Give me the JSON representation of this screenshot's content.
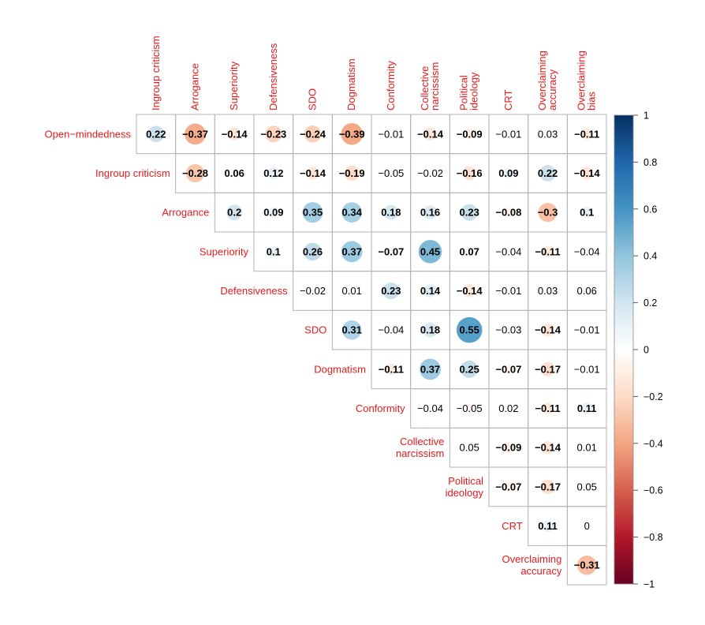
{
  "chart_data": {
    "type": "heatmap",
    "subtype": "correlation-matrix-upper-triangle",
    "label_color": "#e41a1c",
    "columns": [
      "Ingroup criticism",
      "Arrogance",
      "Superiority",
      "Defensiveness",
      "SDO",
      "Dogmatism",
      "Conformity",
      "Collective narcissism",
      "Political ideology",
      "CRT",
      "Overclaiming accuracy",
      "Overclaiming bias"
    ],
    "column_label_lines": [
      [
        "Ingroup criticism"
      ],
      [
        "Arrogance"
      ],
      [
        "Superiority"
      ],
      [
        "Defensiveness"
      ],
      [
        "SDO"
      ],
      [
        "Dogmatism"
      ],
      [
        "Conformity"
      ],
      [
        "Collective",
        "narcissism"
      ],
      [
        "Political",
        "ideology"
      ],
      [
        "CRT"
      ],
      [
        "Overclaiming",
        "accuracy"
      ],
      [
        "Overclaiming",
        "bias"
      ]
    ],
    "rows": [
      "Open−mindedness",
      "Ingroup criticism",
      "Arrogance",
      "Superiority",
      "Defensiveness",
      "SDO",
      "Dogmatism",
      "Conformity",
      "Collective narcissism",
      "Political ideology",
      "CRT",
      "Overclaiming accuracy"
    ],
    "row_label_lines": [
      [
        "Open−mindedness"
      ],
      [
        "Ingroup criticism"
      ],
      [
        "Arrogance"
      ],
      [
        "Superiority"
      ],
      [
        "Defensiveness"
      ],
      [
        "SDO"
      ],
      [
        "Dogmatism"
      ],
      [
        "Conformity"
      ],
      [
        "Collective",
        "narcissism"
      ],
      [
        "Political",
        "ideology"
      ],
      [
        "CRT"
      ],
      [
        "Overclaiming",
        "accuracy"
      ]
    ],
    "cells": [
      [
        {
          "v": 0.22,
          "t": "0.22",
          "c": 1
        },
        {
          "v": -0.37,
          "t": "−0.37",
          "c": 1
        },
        {
          "v": -0.14,
          "t": "−0.14",
          "c": 1
        },
        {
          "v": -0.23,
          "t": "−0.23",
          "c": 1
        },
        {
          "v": -0.24,
          "t": "−0.24",
          "c": 1
        },
        {
          "v": -0.39,
          "t": "−0.39",
          "c": 1
        },
        {
          "v": -0.01,
          "t": "−0.01",
          "c": 0
        },
        {
          "v": -0.14,
          "t": "−0.14",
          "c": 1
        },
        {
          "v": -0.09,
          "t": "−0.09",
          "c": 1
        },
        {
          "v": -0.01,
          "t": "−0.01",
          "c": 0
        },
        {
          "v": 0.03,
          "t": "0.03",
          "c": 0
        },
        {
          "v": -0.11,
          "t": "−0.11",
          "c": 1
        }
      ],
      [
        {
          "v": -0.28,
          "t": "−0.28",
          "c": 1
        },
        {
          "v": 0.06,
          "t": "0.06",
          "c": 1
        },
        {
          "v": 0.12,
          "t": "0.12",
          "c": 1
        },
        {
          "v": -0.14,
          "t": "−0.14",
          "c": 1
        },
        {
          "v": -0.19,
          "t": "−0.19",
          "c": 1
        },
        {
          "v": -0.05,
          "t": "−0.05",
          "c": 0
        },
        {
          "v": -0.02,
          "t": "−0.02",
          "c": 0
        },
        {
          "v": -0.16,
          "t": "−0.16",
          "c": 1
        },
        {
          "v": 0.09,
          "t": "0.09",
          "c": 1
        },
        {
          "v": 0.22,
          "t": "0.22",
          "c": 1
        },
        {
          "v": -0.14,
          "t": "−0.14",
          "c": 1
        }
      ],
      [
        {
          "v": 0.2,
          "t": "0.2",
          "c": 1
        },
        {
          "v": 0.09,
          "t": "0.09",
          "c": 1
        },
        {
          "v": 0.35,
          "t": "0.35",
          "c": 1
        },
        {
          "v": 0.34,
          "t": "0.34",
          "c": 1
        },
        {
          "v": 0.18,
          "t": "0.18",
          "c": 1
        },
        {
          "v": 0.16,
          "t": "0.16",
          "c": 1
        },
        {
          "v": 0.23,
          "t": "0.23",
          "c": 1
        },
        {
          "v": -0.08,
          "t": "−0.08",
          "c": 1
        },
        {
          "v": -0.3,
          "t": "−0.3",
          "c": 1
        },
        {
          "v": 0.1,
          "t": "0.1",
          "c": 1
        }
      ],
      [
        {
          "v": 0.1,
          "t": "0.1",
          "c": 1
        },
        {
          "v": 0.26,
          "t": "0.26",
          "c": 1
        },
        {
          "v": 0.37,
          "t": "0.37",
          "c": 1
        },
        {
          "v": -0.07,
          "t": "−0.07",
          "c": 1
        },
        {
          "v": 0.45,
          "t": "0.45",
          "c": 1
        },
        {
          "v": 0.07,
          "t": "0.07",
          "c": 1
        },
        {
          "v": -0.04,
          "t": "−0.04",
          "c": 0
        },
        {
          "v": -0.11,
          "t": "−0.11",
          "c": 1
        },
        {
          "v": -0.04,
          "t": "−0.04",
          "c": 0
        }
      ],
      [
        {
          "v": -0.02,
          "t": "−0.02",
          "c": 0
        },
        {
          "v": 0.01,
          "t": "0.01",
          "c": 0
        },
        {
          "v": 0.23,
          "t": "0.23",
          "c": 1
        },
        {
          "v": 0.14,
          "t": "0.14",
          "c": 1
        },
        {
          "v": -0.14,
          "t": "−0.14",
          "c": 1
        },
        {
          "v": -0.01,
          "t": "−0.01",
          "c": 0
        },
        {
          "v": 0.03,
          "t": "0.03",
          "c": 0
        },
        {
          "v": 0.06,
          "t": "0.06",
          "c": 0
        }
      ],
      [
        {
          "v": 0.31,
          "t": "0.31",
          "c": 1
        },
        {
          "v": -0.04,
          "t": "−0.04",
          "c": 0
        },
        {
          "v": 0.18,
          "t": "0.18",
          "c": 1
        },
        {
          "v": 0.55,
          "t": "0.55",
          "c": 1
        },
        {
          "v": -0.03,
          "t": "−0.03",
          "c": 0
        },
        {
          "v": -0.14,
          "t": "−0.14",
          "c": 1
        },
        {
          "v": -0.01,
          "t": "−0.01",
          "c": 0
        }
      ],
      [
        {
          "v": -0.11,
          "t": "−0.11",
          "c": 1
        },
        {
          "v": 0.37,
          "t": "0.37",
          "c": 1
        },
        {
          "v": 0.25,
          "t": "0.25",
          "c": 1
        },
        {
          "v": -0.07,
          "t": "−0.07",
          "c": 1
        },
        {
          "v": -0.17,
          "t": "−0.17",
          "c": 1
        },
        {
          "v": -0.01,
          "t": "−0.01",
          "c": 0
        }
      ],
      [
        {
          "v": -0.04,
          "t": "−0.04",
          "c": 0
        },
        {
          "v": -0.05,
          "t": "−0.05",
          "c": 0
        },
        {
          "v": 0.02,
          "t": "0.02",
          "c": 0
        },
        {
          "v": -0.11,
          "t": "−0.11",
          "c": 1
        },
        {
          "v": 0.11,
          "t": "0.11",
          "c": 1
        }
      ],
      [
        {
          "v": 0.05,
          "t": "0.05",
          "c": 0
        },
        {
          "v": -0.09,
          "t": "−0.09",
          "c": 1
        },
        {
          "v": -0.14,
          "t": "−0.14",
          "c": 1
        },
        {
          "v": 0.01,
          "t": "0.01",
          "c": 0
        }
      ],
      [
        {
          "v": -0.07,
          "t": "−0.07",
          "c": 1
        },
        {
          "v": -0.17,
          "t": "−0.17",
          "c": 1
        },
        {
          "v": 0.05,
          "t": "0.05",
          "c": 0
        }
      ],
      [
        {
          "v": 0.11,
          "t": "0.11",
          "c": 1
        },
        {
          "v": 0,
          "t": "0",
          "c": 0
        }
      ],
      [
        {
          "v": -0.31,
          "t": "−0.31",
          "c": 1
        }
      ]
    ],
    "colorbar": {
      "ticks": [
        "1",
        "0.8",
        "0.6",
        "0.4",
        "0.2",
        "0",
        "−0.2",
        "−0.4",
        "−0.6",
        "−0.8",
        "−1"
      ],
      "range": [
        -1,
        1
      ],
      "colors": {
        "-1": "#67001f",
        "-0.8": "#b2182b",
        "-0.6": "#d6604d",
        "-0.4": "#f4a582",
        "-0.2": "#fddbc7",
        "0": "#ffffff",
        "0.2": "#d1e5f0",
        "0.4": "#92c5de",
        "0.6": "#4393c3",
        "0.8": "#2166ac",
        "1": "#053061"
      }
    },
    "legend_position": "right"
  }
}
